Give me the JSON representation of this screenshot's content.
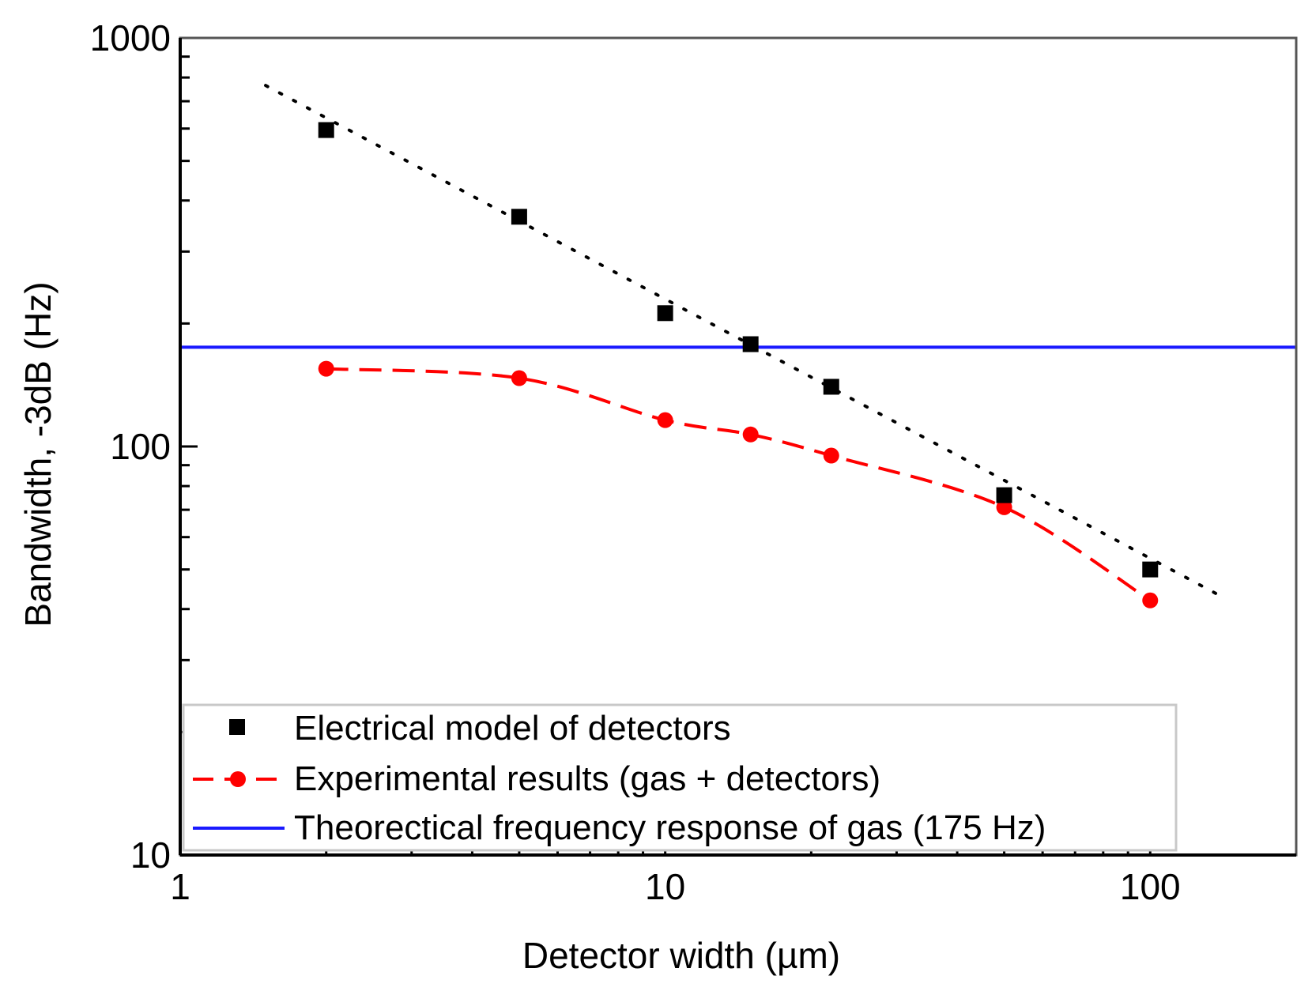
{
  "chart_data": {
    "type": "scatter",
    "title": "",
    "xlabel": "Detector width (µm)",
    "ylabel": "Bandwidth, -3dB (Hz)",
    "xscale": "log",
    "yscale": "log",
    "xlim": [
      1,
      200
    ],
    "ylim": [
      10,
      1000
    ],
    "xticks": [
      1,
      10,
      100
    ],
    "xtick_labels": [
      "1",
      "10",
      "100"
    ],
    "yticks": [
      10,
      100,
      1000
    ],
    "ytick_labels": [
      "10",
      "100",
      "1000"
    ],
    "legend_position": "bottom-left",
    "series": [
      {
        "name": "Electrical model of detectors",
        "marker": "square",
        "color": "#000000",
        "x": [
          2,
          5,
          10,
          15,
          22,
          50,
          100
        ],
        "y": [
          595,
          365,
          212,
          178,
          140,
          76,
          50
        ],
        "fit_line": {
          "style": "dotted",
          "color": "#000000",
          "x": [
            1.5,
            140
          ],
          "y": [
            765,
            43
          ]
        }
      },
      {
        "name": "Experimental results (gas + detectors)",
        "marker": "circle",
        "line": "dashed",
        "color": "#ff0000",
        "x": [
          2,
          5,
          10,
          15,
          22,
          50,
          100
        ],
        "y": [
          155,
          147,
          116,
          107,
          95,
          71,
          42
        ]
      },
      {
        "name": "Theorectical frequency response of gas (175 Hz)",
        "line": "solid",
        "color": "#1a1aff",
        "x": [
          1,
          200
        ],
        "y": [
          175,
          175
        ]
      }
    ]
  }
}
